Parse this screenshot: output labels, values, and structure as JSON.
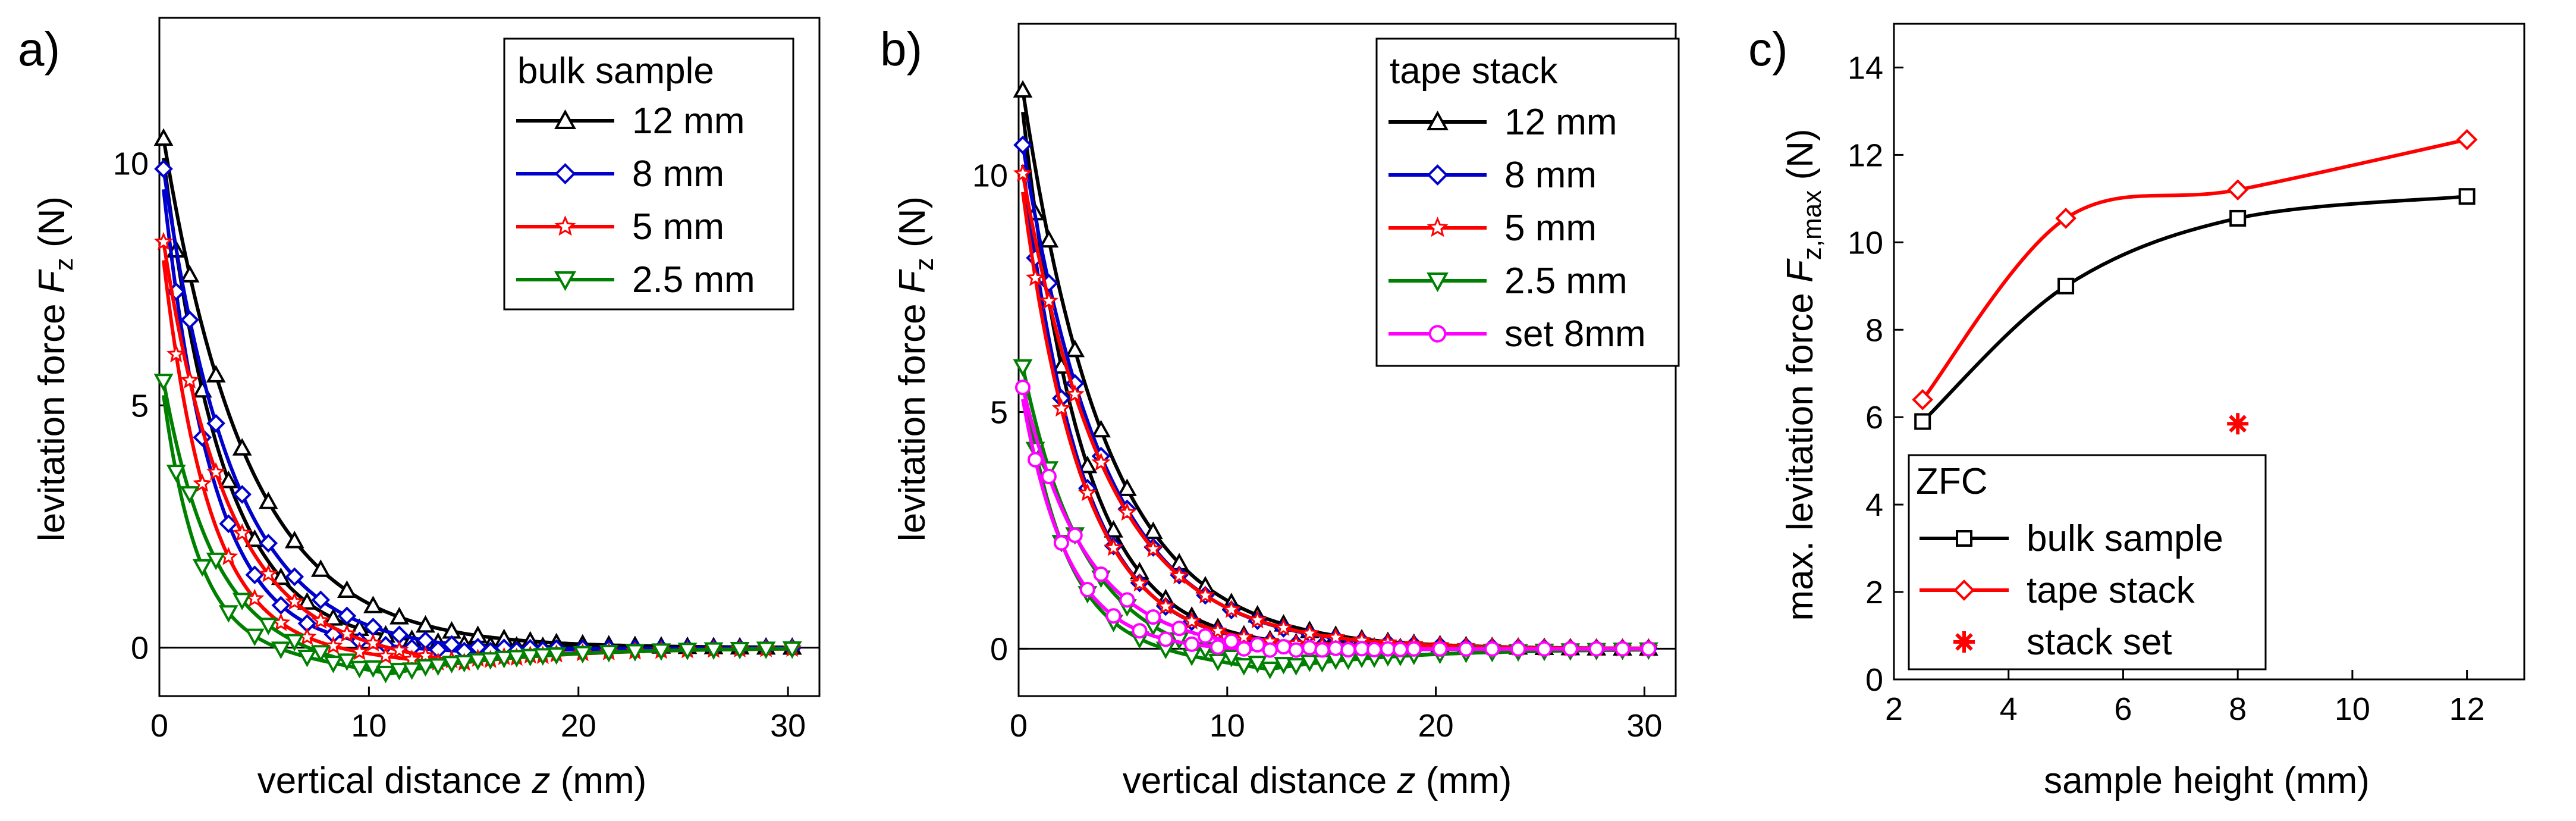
{
  "panels": [
    "a)",
    "b)",
    "c)"
  ],
  "chart_data": [
    {
      "type": "line",
      "panel_label": "a)",
      "xlabel_prefix": "vertical distance",
      "xlabel_var": "z",
      "xlabel_unit": "(mm)",
      "ylabel_prefix": "levitation force",
      "ylabel_var": "F",
      "ylabel_sub": "z",
      "ylabel_unit": "(N)",
      "xlim": [
        0,
        31.5
      ],
      "ylim": [
        -1,
        13
      ],
      "xticks": [
        0,
        10,
        20,
        30
      ],
      "yticks": [
        0,
        5,
        10
      ],
      "zero_line": true,
      "legend_title": "bulk sample",
      "legend_position": "top-right",
      "series": [
        {
          "name": "12 mm",
          "color": "#000000",
          "marker": "triangle-up",
          "fmax": 11.05,
          "tau": 4.0,
          "xmin": 30,
          "dip": 0.0
        },
        {
          "name": "8 mm",
          "color": "#0000cc",
          "marker": "diamond",
          "fmax": 10.5,
          "tau": 3.3,
          "xmin": 15,
          "dip": -0.1
        },
        {
          "name": "5 mm",
          "color": "#ff0000",
          "marker": "star",
          "fmax": 8.95,
          "tau": 3.0,
          "xmin": 14,
          "dip": -0.35
        },
        {
          "name": "2.5 mm",
          "color": "#008000",
          "marker": "triangle-down",
          "fmax": 6.0,
          "tau": 2.3,
          "xmin": 11,
          "dip": -0.55
        }
      ]
    },
    {
      "type": "line",
      "panel_label": "b)",
      "xlabel_prefix": "vertical distance",
      "xlabel_var": "z",
      "xlabel_unit": "(mm)",
      "ylabel_prefix": "levitation force",
      "ylabel_var": "F",
      "ylabel_sub": "z",
      "ylabel_unit": "(N)",
      "xlim": [
        0,
        31.5
      ],
      "ylim": [
        -1,
        13.2
      ],
      "xticks": [
        0,
        10,
        20,
        30
      ],
      "yticks": [
        0,
        5,
        10
      ],
      "zero_line": true,
      "legend_title": "tape stack",
      "legend_position": "top-right",
      "series": [
        {
          "name": "12 mm",
          "color": "#000000",
          "marker": "triangle-up",
          "fmax": 12.4,
          "tau": 4.0,
          "xmin": 30,
          "dip": 0.0
        },
        {
          "name": "8 mm",
          "color": "#0000cc",
          "marker": "diamond",
          "fmax": 11.2,
          "tau": 3.9,
          "xmin": 30,
          "dip": 0.0
        },
        {
          "name": "5 mm",
          "color": "#ff0000",
          "marker": "star",
          "fmax": 10.55,
          "tau": 4.0,
          "xmin": 30,
          "dip": 0.0
        },
        {
          "name": "2.5 mm",
          "color": "#008000",
          "marker": "triangle-down",
          "fmax": 6.4,
          "tau": 2.8,
          "xmin": 12,
          "dip": -0.45
        },
        {
          "name": "set 8mm",
          "color": "#ff00ff",
          "marker": "circle",
          "fmax": 5.9,
          "tau": 3.0,
          "xmin": 12,
          "dip": -0.05
        }
      ]
    },
    {
      "type": "line",
      "panel_label": "c)",
      "xlabel": "sample height (mm)",
      "ylabel_prefix": "max. levitation force",
      "ylabel_var": "F",
      "ylabel_sub": "z,max",
      "ylabel_unit": "(N)",
      "xlim": [
        2,
        13
      ],
      "ylim": [
        0,
        15
      ],
      "xticks": [
        2,
        4,
        6,
        8,
        10,
        12
      ],
      "yticks": [
        0,
        2,
        4,
        6,
        8,
        10,
        12,
        14
      ],
      "legend_title": "ZFC",
      "legend_position": "bottom-left",
      "series": [
        {
          "name": "bulk sample",
          "color": "#000000",
          "marker": "square",
          "x": [
            2.5,
            5,
            8,
            12
          ],
          "y": [
            5.9,
            9.0,
            10.55,
            11.05
          ]
        },
        {
          "name": "tape stack",
          "color": "#ff0000",
          "marker": "diamond",
          "x": [
            2.5,
            5,
            8,
            12
          ],
          "y": [
            6.4,
            10.55,
            11.2,
            12.35
          ]
        },
        {
          "name": "stack set",
          "color": "#ff0000",
          "marker": "asterisk",
          "x": [
            8
          ],
          "y": [
            5.85
          ],
          "no_line": true
        }
      ]
    }
  ]
}
